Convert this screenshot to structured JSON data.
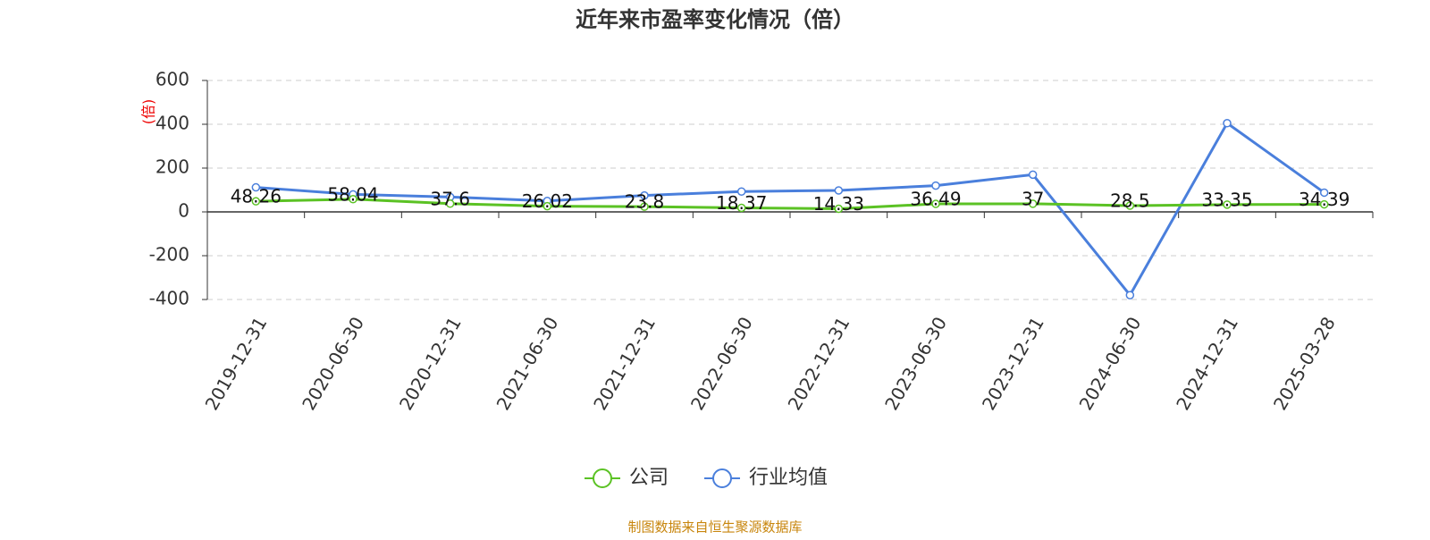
{
  "chart_data": {
    "type": "line",
    "title": "近年来市盈率变化情况（倍）",
    "y_label": "(倍)",
    "source": "制图数据来自恒生聚源数据库",
    "categories": [
      "2019-12-31",
      "2020-06-30",
      "2020-12-31",
      "2021-06-30",
      "2021-12-31",
      "2022-06-30",
      "2022-12-31",
      "2023-06-30",
      "2023-12-31",
      "2024-06-30",
      "2024-12-31",
      "2025-03-28"
    ],
    "series": [
      {
        "name": "公司",
        "color": "#5bc224",
        "values": [
          48.26,
          58.04,
          37.6,
          26.02,
          23.8,
          18.37,
          14.33,
          36.49,
          37,
          28.5,
          33.35,
          34.39
        ],
        "show_labels": true
      },
      {
        "name": "行业均值",
        "color": "#4a7fdc",
        "values": [
          112,
          80,
          68,
          50,
          75,
          93,
          98,
          120,
          170,
          -380,
          405,
          88
        ],
        "show_labels": false
      }
    ],
    "ylim": [
      -400,
      600
    ],
    "yticks": [
      -400,
      -200,
      0,
      200,
      400,
      600
    ],
    "grid": true
  }
}
